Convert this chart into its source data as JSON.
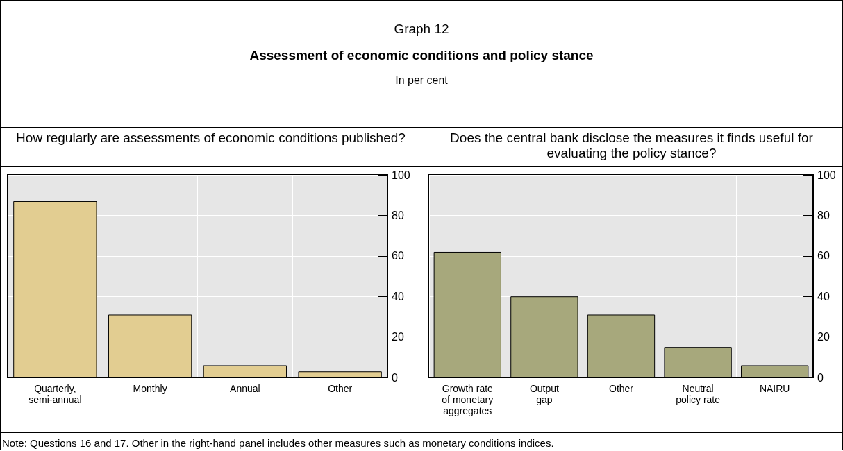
{
  "chart_data": [
    {
      "type": "bar",
      "title": "How regularly are assessments of economic conditions published?",
      "annotations": [
        "Graph 12",
        "Assessment of economic conditions and policy stance",
        "In per cent"
      ],
      "categories": [
        "Quarterly,\nsemi-annual",
        "Monthly",
        "Annual",
        "Other"
      ],
      "values": [
        87,
        31,
        6,
        3
      ],
      "color": "#e2cd91",
      "ylim": [
        0,
        100
      ],
      "yticks": [
        0,
        20,
        40,
        60,
        80,
        100
      ],
      "grid": true
    },
    {
      "type": "bar",
      "title": "Does the central bank disclose the measures it finds useful for evaluating the policy stance?",
      "annotations": [
        "Note: Questions 16 and 17. Other in the right-hand panel includes other measures such as monetary conditions indices."
      ],
      "categories": [
        "Growth rate\nof monetary\naggregates",
        "Output\ngap",
        "Other",
        "Neutral\npolicy rate",
        "NAIRU"
      ],
      "values": [
        62,
        40,
        31,
        15,
        6
      ],
      "color": "#a7a87c",
      "ylim": [
        0,
        100
      ],
      "yticks": [
        0,
        20,
        40,
        60,
        80,
        100
      ],
      "grid": true
    }
  ]
}
